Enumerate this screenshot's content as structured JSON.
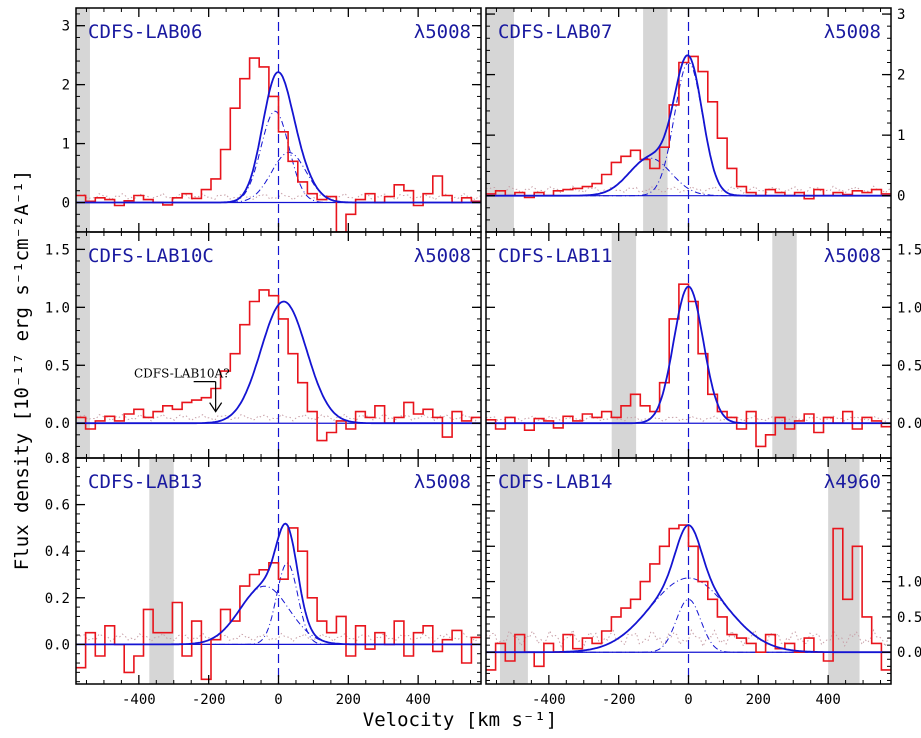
{
  "chart_data": {
    "type": "line",
    "xlabel": "Velocity [km s⁻¹]",
    "ylabel": "Flux density [10⁻¹⁷ erg s⁻¹cm⁻²A⁻¹]",
    "xlim": [
      -580,
      580
    ],
    "xticks": [
      "-400",
      "-200",
      "0",
      "200",
      "400"
    ],
    "colors": {
      "data": "#e8141c",
      "model": "#1414d2",
      "noise": "#c8a0a8",
      "mask": "#d6d6d6"
    },
    "panels": [
      {
        "name": "CDFS-LAB06",
        "line": "λ5008",
        "ylim": [
          -0.5,
          3.3
        ],
        "yticks": [
          "0",
          "1",
          "2",
          "3"
        ],
        "mask": [
          [
            -580,
            -540
          ]
        ],
        "peaks": [
          {
            "amp": 1.55,
            "mu": -10,
            "sig": 40
          },
          {
            "amp": 0.85,
            "mu": 30,
            "sig": 50
          }
        ],
        "noise": 0.1,
        "data": [
          0.12,
          0.02,
          0.08,
          0.05,
          -0.05,
          0.03,
          0.12,
          0.05,
          0.0,
          -0.04,
          0.08,
          0.15,
          0.07,
          0.22,
          0.4,
          0.9,
          1.6,
          2.1,
          2.45,
          2.3,
          1.8,
          1.2,
          0.7,
          0.35,
          0.15,
          0.05,
          0.1,
          -0.5,
          -0.2,
          0.05,
          0.15,
          0.0,
          0.1,
          0.3,
          0.2,
          -0.05,
          0.15,
          0.45,
          0.12,
          0.0,
          0.08,
          0.02
        ]
      },
      {
        "name": "CDFS-LAB07",
        "line": "λ5008",
        "ylim": [
          -0.6,
          3.1
        ],
        "yticks": [
          "0",
          "1",
          "2",
          "3"
        ],
        "mask": [
          [
            -580,
            -500
          ],
          [
            -130,
            -60
          ]
        ],
        "peaks": [
          {
            "amp": 0.62,
            "mu": -110,
            "sig": 60
          },
          {
            "amp": 2.2,
            "mu": 0,
            "sig": 40
          }
        ],
        "noise": 0.1,
        "data": [
          0.03,
          0.08,
          0.0,
          0.05,
          -0.03,
          0.05,
          0.0,
          0.08,
          0.1,
          0.12,
          0.15,
          0.2,
          0.35,
          0.55,
          0.65,
          0.75,
          0.6,
          0.45,
          0.8,
          1.5,
          2.2,
          2.3,
          2.05,
          1.55,
          0.95,
          0.45,
          0.15,
          0.05,
          0.0,
          0.1,
          0.05,
          0.0,
          0.05,
          -0.05,
          0.1,
          0.0,
          0.05,
          0.02,
          0.08,
          0.05,
          0.1,
          0.03
        ]
      },
      {
        "name": "CDFS-LAB10C",
        "line": "λ5008",
        "ylim": [
          -0.3,
          1.65
        ],
        "yticks": [
          "0.0",
          "0.5",
          "1.0",
          "1.5"
        ],
        "mask": [
          [
            -580,
            -540
          ]
        ],
        "peaks": [
          {
            "amp": 1.05,
            "mu": 15,
            "sig": 65
          }
        ],
        "noise": 0.05,
        "arrow": {
          "label": "CDFS-LAB10A?",
          "x": -180,
          "y": 0.1
        },
        "data": [
          0.05,
          -0.05,
          0.02,
          0.06,
          0.02,
          0.08,
          0.12,
          0.05,
          0.1,
          0.15,
          0.12,
          0.18,
          0.2,
          0.22,
          0.3,
          0.45,
          0.6,
          0.85,
          1.05,
          1.15,
          1.1,
          0.9,
          0.6,
          0.35,
          0.1,
          -0.15,
          -0.08,
          0.02,
          -0.05,
          0.1,
          0.05,
          0.15,
          0.0,
          0.05,
          0.18,
          0.08,
          0.12,
          0.05,
          -0.12,
          0.1,
          0.02,
          0.05
        ]
      },
      {
        "name": "CDFS-LAB11",
        "line": "λ5008",
        "ylim": [
          -0.3,
          1.65
        ],
        "yticks": [
          "0.0",
          "0.5",
          "1.0",
          "1.5"
        ],
        "mask": [
          [
            -220,
            -150
          ],
          [
            240,
            310
          ]
        ],
        "peaks": [
          {
            "amp": 1.18,
            "mu": 0,
            "sig": 42
          }
        ],
        "noise": 0.04,
        "data": [
          0.03,
          -0.05,
          0.05,
          0.0,
          -0.06,
          0.04,
          0.02,
          -0.04,
          0.06,
          0.02,
          0.08,
          0.05,
          0.1,
          0.05,
          0.15,
          0.25,
          0.15,
          0.1,
          0.35,
          0.9,
          1.2,
          1.05,
          0.6,
          0.25,
          0.1,
          0.05,
          -0.05,
          0.1,
          -0.2,
          -0.1,
          0.05,
          -0.05,
          0.02,
          0.08,
          -0.08,
          0.05,
          0.0,
          0.1,
          -0.05,
          0.05,
          0.02,
          -0.03
        ]
      },
      {
        "name": "CDFS-LAB13",
        "line": "λ5008",
        "ylim": [
          -0.17,
          0.8
        ],
        "yticks": [
          "0.0",
          "0.2",
          "0.4",
          "0.6",
          "0.8"
        ],
        "mask": [
          [
            -370,
            -300
          ]
        ],
        "peaks": [
          {
            "amp": 0.25,
            "mu": -40,
            "sig": 70
          },
          {
            "amp": 0.35,
            "mu": 25,
            "sig": 30
          }
        ],
        "noise": 0.03,
        "data": [
          -0.1,
          0.05,
          -0.05,
          0.08,
          0.0,
          -0.12,
          -0.05,
          0.15,
          0.05,
          0.05,
          0.18,
          -0.05,
          0.1,
          -0.15,
          0.02,
          0.15,
          0.1,
          0.25,
          0.3,
          0.32,
          0.35,
          0.28,
          0.5,
          0.4,
          0.2,
          0.1,
          0.05,
          0.12,
          -0.05,
          0.08,
          -0.02,
          0.05,
          0.0,
          0.1,
          -0.05,
          0.05,
          0.08,
          -0.03,
          0.02,
          0.06,
          -0.08,
          0.03
        ]
      },
      {
        "name": "CDFS-LAB14",
        "line": "λ4960",
        "ylim": [
          -0.18,
          1.1
        ],
        "yticks": [
          "0.0",
          "0.5",
          "1.0"
        ],
        "mask": [
          [
            -540,
            -460
          ],
          [
            400,
            490
          ]
        ],
        "peaks": [
          {
            "amp": 0.42,
            "mu": 0,
            "sig": 110
          },
          {
            "amp": 0.3,
            "mu": 0,
            "sig": 35
          }
        ],
        "noise": 0.08,
        "data": [
          -0.1,
          0.05,
          -0.05,
          0.1,
          0.0,
          -0.08,
          0.05,
          0.0,
          0.1,
          0.02,
          0.08,
          0.05,
          0.12,
          0.2,
          0.25,
          0.3,
          0.4,
          0.5,
          0.6,
          0.7,
          0.72,
          0.6,
          0.4,
          0.3,
          0.2,
          0.1,
          0.08,
          0.05,
          0.0,
          0.1,
          0.02,
          0.05,
          0.0,
          0.08,
          0.0,
          -0.05,
          0.7,
          0.3,
          0.6,
          0.2,
          0.05,
          -0.1
        ]
      }
    ]
  }
}
